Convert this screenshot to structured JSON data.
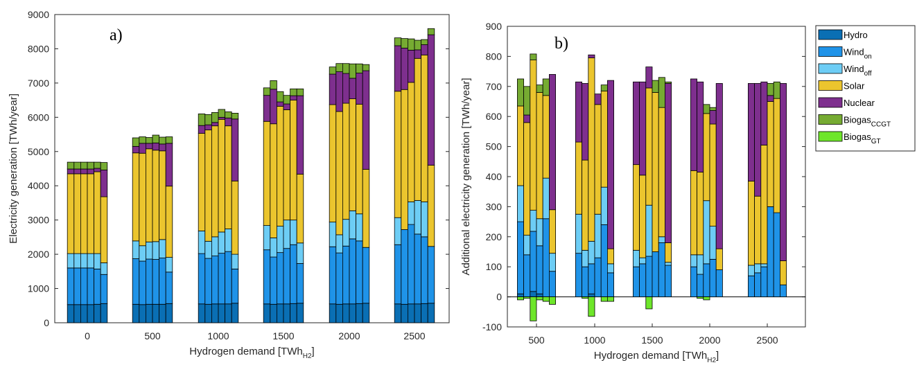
{
  "colors": {
    "Hydro": "#0a6fb4",
    "Wind_on": "#1f93e8",
    "Wind_off": "#6dcdf5",
    "Solar": "#ebc52e",
    "Nuclear": "#7e2f8e",
    "Biogas_CCGT": "#76ab32",
    "Biogas_GT": "#6ee62a"
  },
  "legend": [
    {
      "key": "Hydro",
      "base": "Hydro",
      "sub": ""
    },
    {
      "key": "Wind_on",
      "base": "Wind",
      "sub": "on"
    },
    {
      "key": "Wind_off",
      "base": "Wind",
      "sub": "off"
    },
    {
      "key": "Solar",
      "base": "Solar",
      "sub": ""
    },
    {
      "key": "Nuclear",
      "base": "Nuclear",
      "sub": ""
    },
    {
      "key": "Biogas_CCGT",
      "base": "Biogas",
      "sub": "CCGT"
    },
    {
      "key": "Biogas_GT",
      "base": "Biogas",
      "sub": "GT"
    }
  ],
  "chart_data": [
    {
      "type": "bar",
      "stacked": true,
      "panel_label": "a)",
      "xlabel": {
        "base": "Hydrogen demand [TWh",
        "sub": "H2",
        "end": "]"
      },
      "ylabel": "Electricity generation [TWh/year]",
      "ylim": [
        0,
        9000
      ],
      "yticks": [
        0,
        1000,
        2000,
        3000,
        4000,
        5000,
        6000,
        7000,
        8000,
        9000
      ],
      "groups": [
        "0",
        "500",
        "1000",
        "1500",
        "2000",
        "2500"
      ],
      "bars_per_group": 6,
      "series_order": [
        "Hydro",
        "Wind_on",
        "Wind_off",
        "Solar",
        "Nuclear",
        "Biogas_CCGT",
        "Biogas_GT"
      ],
      "bars": [
        [
          [
            530,
            1070,
            420,
            2330,
            140,
            200,
            0
          ],
          [
            530,
            1070,
            420,
            2330,
            140,
            200,
            0
          ],
          [
            530,
            1070,
            420,
            2330,
            140,
            200,
            0
          ],
          [
            530,
            1070,
            420,
            2330,
            140,
            200,
            0
          ],
          [
            540,
            1030,
            450,
            2390,
            100,
            180,
            0
          ],
          [
            560,
            850,
            340,
            1930,
            780,
            220,
            0
          ]
        ],
        [
          [
            540,
            1330,
            520,
            2570,
            190,
            250,
            0
          ],
          [
            530,
            1270,
            450,
            2700,
            290,
            190,
            0
          ],
          [
            540,
            1320,
            500,
            2720,
            160,
            170,
            0
          ],
          [
            540,
            1310,
            520,
            2670,
            210,
            230,
            0
          ],
          [
            540,
            1350,
            540,
            2590,
            200,
            200,
            0
          ],
          [
            560,
            920,
            430,
            2080,
            1250,
            190,
            0
          ]
        ],
        [
          [
            550,
            1470,
            660,
            2850,
            230,
            340,
            0
          ],
          [
            540,
            1340,
            500,
            3250,
            150,
            300,
            0
          ],
          [
            550,
            1400,
            560,
            3240,
            100,
            290,
            0
          ],
          [
            550,
            1480,
            620,
            3290,
            60,
            230,
            0
          ],
          [
            550,
            1530,
            660,
            3010,
            230,
            180,
            0
          ],
          [
            570,
            1000,
            430,
            2140,
            1810,
            170,
            0
          ]
        ],
        [
          [
            550,
            1580,
            710,
            3040,
            760,
            220,
            0
          ],
          [
            540,
            1380,
            560,
            3330,
            1010,
            250,
            0
          ],
          [
            550,
            1500,
            770,
            3500,
            130,
            300,
            0
          ],
          [
            550,
            1620,
            830,
            3220,
            170,
            250,
            0
          ],
          [
            560,
            1720,
            720,
            3500,
            130,
            200,
            0
          ],
          [
            570,
            1160,
            600,
            2010,
            2290,
            200,
            0
          ]
        ],
        [
          [
            550,
            1670,
            720,
            3430,
            890,
            210,
            0
          ],
          [
            540,
            1500,
            530,
            3600,
            1160,
            240,
            0
          ],
          [
            550,
            1690,
            780,
            3390,
            870,
            290,
            0
          ],
          [
            550,
            1900,
            820,
            3270,
            600,
            420,
            0
          ],
          [
            560,
            1830,
            790,
            3200,
            910,
            270,
            0
          ],
          [
            570,
            1630,
            0,
            2280,
            2880,
            180,
            0
          ]
        ],
        [
          [
            550,
            1730,
            790,
            3690,
            1330,
            230,
            0
          ],
          [
            540,
            2180,
            0,
            4090,
            1210,
            280,
            0
          ],
          [
            550,
            2320,
            660,
            3490,
            940,
            330,
            0
          ],
          [
            550,
            2040,
            980,
            4150,
            250,
            280,
            0
          ],
          [
            560,
            1950,
            1020,
            4290,
            300,
            150,
            0
          ],
          [
            570,
            1660,
            0,
            2370,
            3810,
            180,
            0
          ]
        ]
      ]
    },
    {
      "type": "bar",
      "stacked": true,
      "panel_label": "b)",
      "xlabel": {
        "base": "Hydrogen demand [TWh",
        "sub": "H2",
        "end": "]"
      },
      "ylabel": "Additional electricity generation [TWh/year]",
      "ylim": [
        -100,
        900
      ],
      "yticks": [
        -100,
        0,
        100,
        200,
        300,
        400,
        500,
        600,
        700,
        800,
        900
      ],
      "groups": [
        "500",
        "1000",
        "1500",
        "2000",
        "2500"
      ],
      "bars_per_group": 6,
      "series_order": [
        "Hydro",
        "Wind_on",
        "Wind_off",
        "Solar",
        "Nuclear",
        "Biogas_CCGT",
        "Biogas_GT"
      ],
      "bars": [
        [
          [
            10,
            240,
            120,
            265,
            0,
            90,
            -10
          ],
          [
            0,
            140,
            65,
            375,
            25,
            95,
            -5
          ],
          [
            18,
            200,
            70,
            500,
            0,
            20,
            -80
          ],
          [
            10,
            160,
            90,
            420,
            0,
            25,
            -10
          ],
          [
            0,
            260,
            135,
            275,
            0,
            55,
            -15
          ],
          [
            0,
            85,
            60,
            145,
            450,
            0,
            -25
          ]
        ],
        [
          [
            0,
            145,
            130,
            240,
            200,
            0,
            0
          ],
          [
            0,
            100,
            55,
            300,
            255,
            0,
            -5
          ],
          [
            10,
            100,
            75,
            610,
            10,
            0,
            -65
          ],
          [
            0,
            130,
            145,
            365,
            35,
            0,
            0
          ],
          [
            0,
            240,
            125,
            320,
            0,
            20,
            -15
          ],
          [
            0,
            80,
            30,
            50,
            560,
            0,
            -15
          ]
        ],
        [
          [
            0,
            100,
            55,
            285,
            275,
            0,
            0
          ],
          [
            0,
            110,
            20,
            275,
            310,
            0,
            0
          ],
          [
            0,
            135,
            170,
            390,
            70,
            0,
            -40
          ],
          [
            0,
            150,
            0,
            530,
            0,
            40,
            0
          ],
          [
            0,
            180,
            20,
            430,
            0,
            100,
            0
          ],
          [
            0,
            105,
            10,
            65,
            530,
            5,
            0
          ]
        ],
        [
          [
            0,
            100,
            40,
            280,
            305,
            0,
            0
          ],
          [
            0,
            75,
            65,
            275,
            300,
            0,
            -5
          ],
          [
            0,
            110,
            210,
            290,
            0,
            30,
            -10
          ],
          [
            0,
            125,
            110,
            340,
            45,
            10,
            0
          ],
          [
            0,
            90,
            0,
            70,
            550,
            0,
            0
          ],
          [
            0,
            0,
            0,
            0,
            0,
            0,
            0
          ]
        ],
        [
          [
            0,
            70,
            35,
            280,
            325,
            0,
            0
          ],
          [
            0,
            80,
            30,
            225,
            375,
            0,
            0
          ],
          [
            0,
            100,
            10,
            395,
            210,
            0,
            0
          ],
          [
            0,
            300,
            0,
            350,
            20,
            40,
            0
          ],
          [
            0,
            280,
            0,
            380,
            0,
            55,
            0
          ],
          [
            0,
            40,
            0,
            80,
            590,
            0,
            0
          ]
        ]
      ]
    }
  ]
}
